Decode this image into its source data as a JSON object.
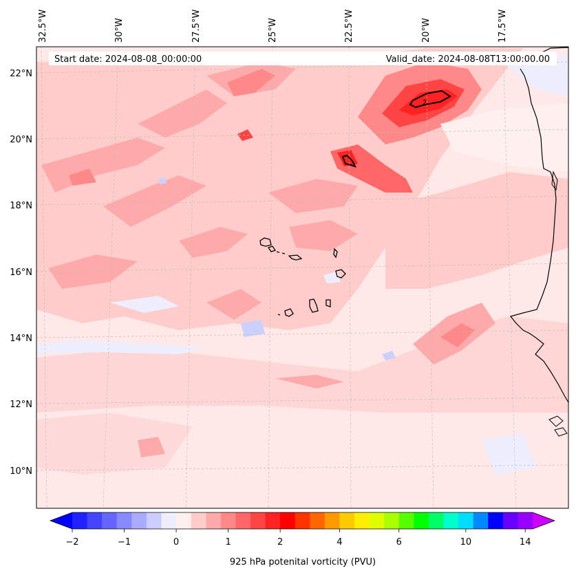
{
  "info": {
    "start_date": "Start date: 2024-08-08_00:00:00",
    "valid_date": "Valid_date: 2024-08-08T13:00:00.00"
  },
  "longitude_labels": [
    "32.5°W",
    "30°W",
    "27.5°W",
    "25°W",
    "22.5°W",
    "20°W",
    "17.5°W"
  ],
  "latitude_labels": [
    "22°N",
    "20°N",
    "18°N",
    "16°N",
    "14°N",
    "12°N",
    "10°N"
  ],
  "contour_label": "2",
  "colorbar": {
    "label": "925 hPa potenital vorticity (PVU)",
    "tick_labels": [
      "−2",
      "−1",
      "0",
      "1",
      "2",
      "4",
      "6",
      "10",
      "14"
    ],
    "under_color": "#0000ff",
    "over_color": "#cc00ff",
    "colors": [
      "#2222ff",
      "#4444ff",
      "#6666ff",
      "#8888ff",
      "#aaaaff",
      "#ccccff",
      "#eeeeff",
      "#ffeeee",
      "#ffcccc",
      "#ffaaaa",
      "#ff8888",
      "#ff6666",
      "#ff4444",
      "#ff2222",
      "#ff0000",
      "#ff3300",
      "#ff6600",
      "#ff9900",
      "#ffcc00",
      "#ffee00",
      "#ddff00",
      "#aaff00",
      "#55ff00",
      "#00ff00",
      "#00ff66",
      "#00ffcc",
      "#00ddff",
      "#0088ff",
      "#0000ff",
      "#6600ff",
      "#9900ff"
    ]
  },
  "colors": {
    "background_field": "#ffe8e8",
    "weak_positive": "#ffcccc",
    "moderate_positive": "#ffaaaa",
    "strong_positive": "#ff6666",
    "very_strong": "#ff2222",
    "negative": "#dde0ff",
    "coastline": "#000000",
    "gridline": "#bbbbbb"
  }
}
